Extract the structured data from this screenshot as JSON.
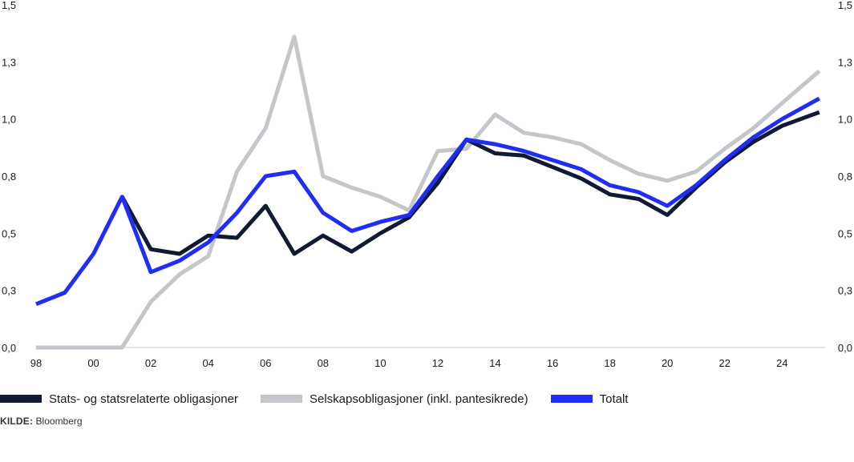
{
  "chart_data": {
    "type": "line",
    "x_tick_labels": [
      "98",
      "00",
      "02",
      "04",
      "06",
      "08",
      "10",
      "12",
      "14",
      "16",
      "18",
      "20",
      "22",
      "24"
    ],
    "x_tick_years": [
      1998,
      2000,
      2002,
      2004,
      2006,
      2008,
      2010,
      2012,
      2014,
      2016,
      2018,
      2020,
      2022,
      2024
    ],
    "x_range": [
      1998,
      2025.5
    ],
    "y_range": [
      0,
      1.5
    ],
    "y_ticks": [
      0,
      0.25,
      0.5,
      0.75,
      1.0,
      1.25,
      1.5
    ],
    "y_tick_labels": [
      "0,0",
      "0,3",
      "0,5",
      "0,8",
      "1,0",
      "1,3",
      "1,5"
    ],
    "grid": false,
    "legend_position": "bottom-left",
    "series": [
      {
        "name": "Stats- og statsrelaterte obligasjoner",
        "color": "#111a33",
        "x": [
          2001,
          2002,
          2003,
          2004,
          2005,
          2006,
          2007,
          2008,
          2009,
          2010,
          2011,
          2012,
          2013,
          2014,
          2015,
          2016,
          2017,
          2018,
          2019,
          2020,
          2021,
          2022,
          2023,
          2024,
          2025.3
        ],
        "y": [
          0.66,
          0.43,
          0.41,
          0.49,
          0.48,
          0.62,
          0.41,
          0.49,
          0.42,
          0.5,
          0.57,
          0.72,
          0.91,
          0.85,
          0.84,
          0.79,
          0.74,
          0.67,
          0.65,
          0.58,
          0.7,
          0.81,
          0.9,
          0.97,
          1.03
        ]
      },
      {
        "name": "Selskapsobligasjoner (inkl. pantesikrede)",
        "color": "#c3c6cb",
        "x": [
          1998,
          1999,
          2000,
          2001,
          2002,
          2003,
          2004,
          2005,
          2006,
          2007,
          2008,
          2009,
          2010,
          2011,
          2012,
          2013,
          2014,
          2015,
          2016,
          2017,
          2018,
          2019,
          2020,
          2021,
          2022,
          2023,
          2024,
          2025.3
        ],
        "y": [
          0,
          0,
          0,
          0,
          0.2,
          0.32,
          0.4,
          0.77,
          0.96,
          1.36,
          0.75,
          0.7,
          0.66,
          0.6,
          0.86,
          0.87,
          1.02,
          0.94,
          0.92,
          0.89,
          0.82,
          0.76,
          0.73,
          0.77,
          0.87,
          0.96,
          1.07,
          1.21
        ]
      },
      {
        "name": "Totalt",
        "color": "#1f2df5",
        "x": [
          1998,
          1999,
          2000,
          2001,
          2002,
          2003,
          2004,
          2005,
          2006,
          2007,
          2008,
          2009,
          2010,
          2011,
          2012,
          2013,
          2014,
          2015,
          2016,
          2017,
          2018,
          2019,
          2020,
          2021,
          2022,
          2023,
          2024,
          2025.3
        ],
        "y": [
          0.19,
          0.24,
          0.41,
          0.66,
          0.33,
          0.38,
          0.46,
          0.59,
          0.75,
          0.77,
          0.59,
          0.51,
          0.55,
          0.58,
          0.75,
          0.91,
          0.89,
          0.86,
          0.82,
          0.78,
          0.71,
          0.68,
          0.62,
          0.71,
          0.82,
          0.92,
          1.0,
          1.09
        ]
      }
    ]
  },
  "source": {
    "label": "KILDE:",
    "text": "Bloomberg"
  }
}
